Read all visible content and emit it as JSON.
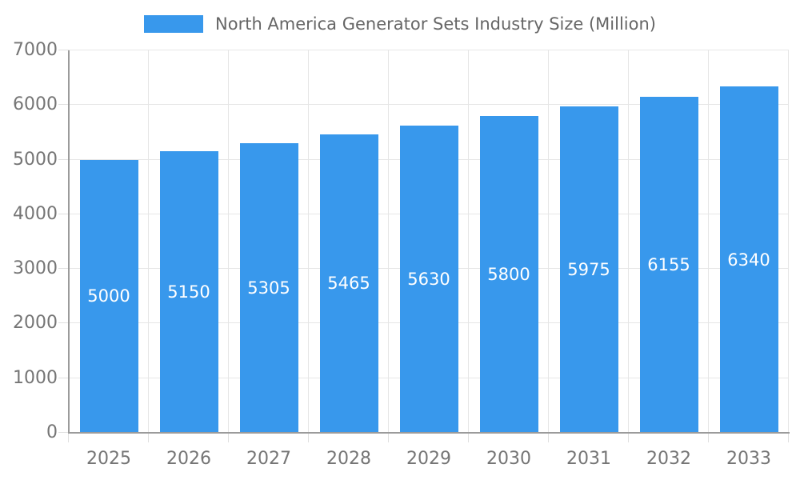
{
  "chart_data": {
    "type": "bar",
    "title": "North America Generator Sets Industry Size (Million)",
    "categories": [
      "2025",
      "2026",
      "2027",
      "2028",
      "2029",
      "2030",
      "2031",
      "2032",
      "2033"
    ],
    "series": [
      {
        "name": "North America Generator Sets Industry Size (Million)",
        "values": [
          5000,
          5150,
          5305,
          5465,
          5630,
          5800,
          5975,
          6155,
          6340
        ]
      }
    ],
    "xlabel": "",
    "ylabel": "",
    "ylim": [
      0,
      7000
    ],
    "y_ticks": [
      0,
      1000,
      2000,
      3000,
      4000,
      5000,
      6000,
      7000
    ],
    "grid": "on",
    "legend_position": "top",
    "data_labels": "white values centered inside bars",
    "colors": {
      "bar": "#3898EC",
      "grid": "#E6E6E6",
      "tick": "#E0E0E0",
      "axis": "#9B9B9B",
      "axis_label": "#757575",
      "legend_text": "#666666",
      "value_label": "#FFFFFF",
      "background": "#FFFFFF"
    }
  }
}
